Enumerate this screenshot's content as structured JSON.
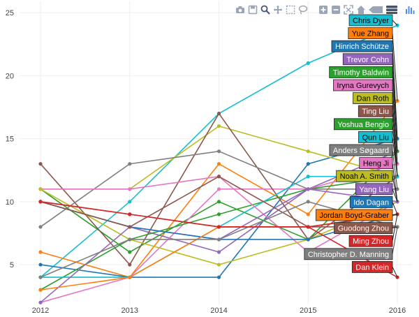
{
  "chart_data": {
    "type": "line",
    "x": [
      2012,
      2013,
      2014,
      2015,
      2016
    ],
    "xlim": [
      2012,
      2016
    ],
    "ylim": [
      1.4,
      25.4
    ],
    "ytick_labels": [
      "5",
      "10",
      "15",
      "20",
      "25"
    ],
    "xtick_labels": [
      "2012",
      "2013",
      "2014",
      "2015",
      "2016"
    ],
    "grid": true,
    "series": [
      {
        "name": "Chris Dyer",
        "color": "#17becf",
        "values": [
          4,
          10,
          17,
          21,
          24
        ]
      },
      {
        "name": "Yue Zhang",
        "color": "#ff7f0e",
        "values": [
          6,
          4,
          13,
          9,
          18
        ]
      },
      {
        "name": "Hinrich Schütze",
        "color": "#1f77b4",
        "values": [
          5,
          4,
          4,
          13,
          15
        ]
      },
      {
        "name": "Trevor Cohn",
        "color": "#9467bd",
        "values": [
          10,
          8,
          6,
          11,
          14
        ]
      },
      {
        "name": "Timothy Baldwin",
        "color": "#2ca02c",
        "values": [
          11,
          6,
          10,
          7,
          14
        ]
      },
      {
        "name": "Iryna Gurevych",
        "color": "#e377c2",
        "values": [
          2,
          4,
          11,
          11,
          13
        ]
      },
      {
        "name": "Dan Roth",
        "color": "#bcbd22",
        "values": [
          11,
          11,
          16,
          14,
          12
        ]
      },
      {
        "name": "Ting Liu",
        "color": "#8c564b",
        "values": [
          13,
          5,
          17,
          7,
          12
        ]
      },
      {
        "name": "Yoshua Bengio",
        "color": "#2ca02c",
        "values": [
          3,
          7,
          9,
          11,
          12
        ]
      },
      {
        "name": "Qun Liu",
        "color": "#17becf",
        "values": [
          4,
          4,
          8,
          12,
          12
        ]
      },
      {
        "name": "Anders Søgaard",
        "color": "#7f7f7f",
        "values": [
          8,
          13,
          14,
          11,
          11
        ]
      },
      {
        "name": "Heng Ji",
        "color": "#e377c2",
        "values": [
          11,
          11,
          12,
          6,
          10
        ]
      },
      {
        "name": "Noah A. Smith",
        "color": "#bcbd22",
        "values": [
          11,
          7,
          5,
          7,
          10
        ]
      },
      {
        "name": "Yang Liu",
        "color": "#9467bd",
        "values": [
          2,
          8,
          7,
          11,
          10
        ]
      },
      {
        "name": "Ido Dagan",
        "color": "#1f77b4",
        "values": [
          10,
          8,
          7,
          7,
          9
        ]
      },
      {
        "name": "Jordan Boyd-Graber",
        "color": "#ff7f0e",
        "values": [
          3,
          4,
          8,
          8,
          9
        ]
      },
      {
        "name": "Guodong Zhou",
        "color": "#8c564b",
        "values": [
          10,
          8,
          12,
          8,
          8
        ]
      },
      {
        "name": "Ming Zhou",
        "color": "#d62728",
        "values": [
          10,
          9,
          8,
          8,
          9
        ]
      },
      {
        "name": "Christopher D. Manning",
        "color": "#7f7f7f",
        "values": [
          4,
          7,
          7,
          10,
          8
        ]
      },
      {
        "name": "Dan Klein",
        "color": "#d62728",
        "values": [
          10,
          9,
          8,
          8,
          4
        ]
      }
    ],
    "hover_labels": [
      {
        "name": "Chris Dyer",
        "bg": "#17becf",
        "fg": "#000000"
      },
      {
        "name": "Yue Zhang",
        "bg": "#ff7f0e",
        "fg": "#000000"
      },
      {
        "name": "Hinrich Schütze",
        "bg": "#1f77b4",
        "fg": "#ffffff"
      },
      {
        "name": "Trevor Cohn",
        "bg": "#9467bd",
        "fg": "#ffffff"
      },
      {
        "name": "Timothy Baldwin",
        "bg": "#2ca02c",
        "fg": "#ffffff"
      },
      {
        "name": "Iryna Gurevych",
        "bg": "#e377c2",
        "fg": "#000000"
      },
      {
        "name": "Dan Roth",
        "bg": "#bcbd22",
        "fg": "#000000"
      },
      {
        "name": "Ting Liu",
        "bg": "#8c564b",
        "fg": "#ffffff"
      },
      {
        "name": "Yoshua Bengio",
        "bg": "#2ca02c",
        "fg": "#ffffff"
      },
      {
        "name": "Qun Liu",
        "bg": "#17becf",
        "fg": "#000000"
      },
      {
        "name": "Anders Søgaard",
        "bg": "#7f7f7f",
        "fg": "#ffffff"
      },
      {
        "name": "Heng Ji",
        "bg": "#e377c2",
        "fg": "#000000"
      },
      {
        "name": "Noah A. Smith",
        "bg": "#bcbd22",
        "fg": "#000000"
      },
      {
        "name": "Yang Liu",
        "bg": "#9467bd",
        "fg": "#ffffff"
      },
      {
        "name": "Ido Dagan",
        "bg": "#1f77b4",
        "fg": "#ffffff"
      },
      {
        "name": "Jordan Boyd-Graber",
        "bg": "#ff7f0e",
        "fg": "#000000"
      },
      {
        "name": "Guodong Zhou",
        "bg": "#8c564b",
        "fg": "#ffffff"
      },
      {
        "name": "Ming Zhou",
        "bg": "#d62728",
        "fg": "#ffffff"
      },
      {
        "name": "Christopher D. Manning",
        "bg": "#7f7f7f",
        "fg": "#ffffff"
      },
      {
        "name": "Dan Klein",
        "bg": "#d62728",
        "fg": "#ffffff"
      }
    ]
  },
  "modebar": {
    "buttons": [
      {
        "name": "camera-icon",
        "glyph": "📷"
      },
      {
        "name": "save-icon",
        "glyph": "💾"
      },
      {
        "name": "zoom-icon",
        "glyph": "🔍"
      },
      {
        "name": "pan-icon",
        "glyph": "✥"
      },
      {
        "name": "box-select-icon",
        "glyph": "⬚"
      },
      {
        "name": "lasso-select-icon",
        "glyph": "◌"
      },
      {
        "name": "zoom-in-icon",
        "glyph": "+"
      },
      {
        "name": "zoom-out-icon",
        "glyph": "−"
      },
      {
        "name": "autoscale-icon",
        "glyph": "⤢"
      },
      {
        "name": "home-icon",
        "glyph": "⌂"
      },
      {
        "name": "spike-lines-icon",
        "glyph": "◀"
      },
      {
        "name": "compare-hover-icon",
        "glyph": "☰"
      },
      {
        "name": "plotly-logo-icon",
        "glyph": "▮"
      }
    ]
  }
}
